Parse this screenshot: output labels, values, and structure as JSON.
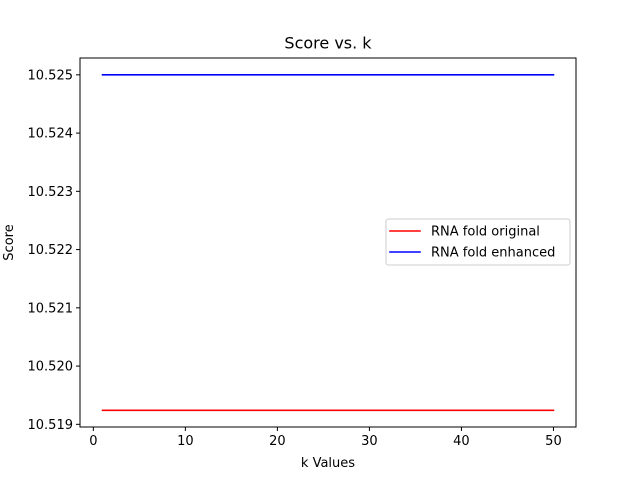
{
  "chart_data": {
    "type": "line",
    "title": "Score vs. k",
    "xlabel": "k Values",
    "ylabel": "Score",
    "xlim": [
      -1.45,
      52.45
    ],
    "ylim": [
      10.518954,
      10.525289
    ],
    "x_ticks": [
      0,
      10,
      20,
      30,
      40,
      50
    ],
    "y_ticks": [
      10.519,
      10.52,
      10.521,
      10.522,
      10.523,
      10.524,
      10.525
    ],
    "y_tick_labels": [
      "10.519",
      "10.520",
      "10.521",
      "10.522",
      "10.523",
      "10.524",
      "10.525"
    ],
    "grid": false,
    "legend_position": "center-right",
    "series": [
      {
        "name": "RNA fold original",
        "color": "#ff0000",
        "x": [
          1,
          50
        ],
        "values": [
          10.51924,
          10.51924
        ]
      },
      {
        "name": "RNA fold enhanced",
        "color": "#0000ff",
        "x": [
          1,
          50
        ],
        "values": [
          10.525,
          10.525
        ]
      }
    ]
  }
}
